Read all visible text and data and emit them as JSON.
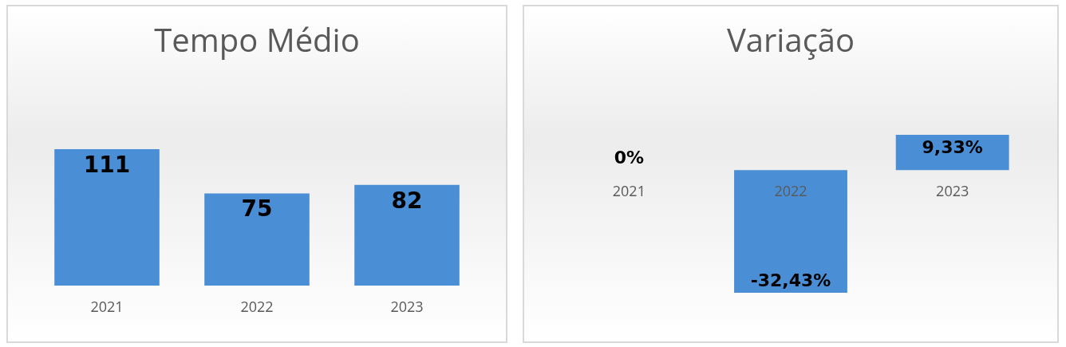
{
  "chart_data": [
    {
      "type": "bar",
      "title": "Tempo Médio",
      "categories": [
        "2021",
        "2022",
        "2023"
      ],
      "values": [
        111,
        75,
        82
      ],
      "color": "#4a8fd6",
      "data_labels": true
    },
    {
      "type": "bar",
      "title": "Variação",
      "categories": [
        "2021",
        "2022",
        "2023"
      ],
      "values": [
        0,
        -32.43,
        9.33
      ],
      "value_labels": [
        "0%",
        "-32,43%",
        "9,33%"
      ],
      "color": "#4a8fd6"
    }
  ]
}
